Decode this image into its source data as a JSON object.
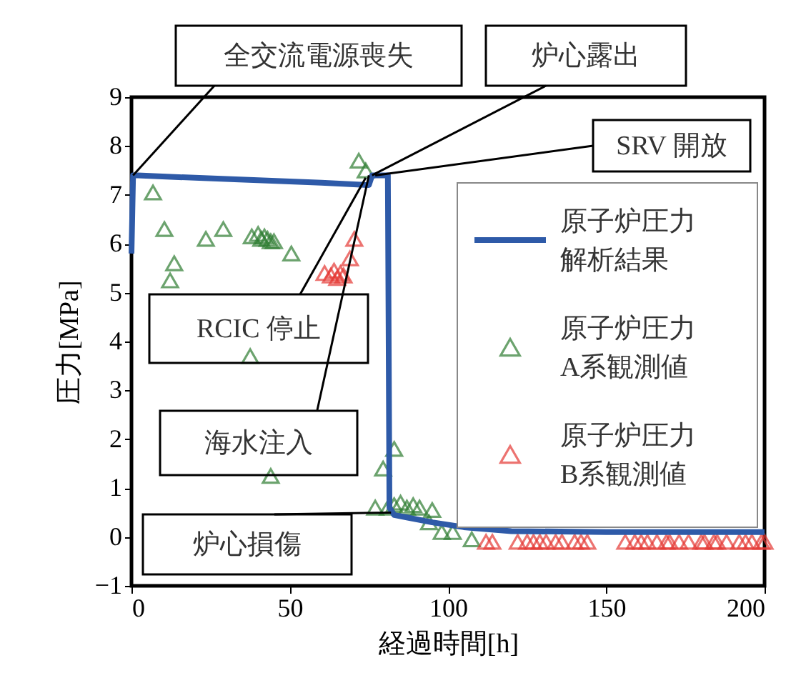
{
  "chart_data": {
    "type": "line",
    "xlabel": "経過時間[h]",
    "ylabel": "圧力[MPa]",
    "xlim": [
      0,
      200
    ],
    "xticks": [
      0,
      50,
      100,
      150,
      200
    ],
    "ylim": [
      -1,
      9
    ],
    "yticks": [
      -1,
      0,
      1,
      2,
      3,
      4,
      5,
      6,
      7,
      8,
      9
    ],
    "grid": false,
    "legend": "right",
    "series": [
      {
        "name": "原子炉圧力解析結果",
        "color": "#2e5aa8",
        "line_style": "solid",
        "x": [
          0,
          0.5,
          2,
          20,
          40,
          60,
          75,
          76,
          81,
          81.5,
          83,
          87,
          95,
          105,
          120,
          150,
          200
        ],
        "values": [
          5.8,
          7.4,
          7.4,
          7.35,
          7.3,
          7.25,
          7.2,
          7.4,
          7.4,
          0.6,
          0.45,
          0.4,
          0.3,
          0.2,
          0.12,
          0.1,
          0.1
        ]
      },
      {
        "name": "原子炉圧力A系観測値",
        "type": "scatter",
        "color": "#2e7d32",
        "marker": "triangle",
        "x": [
          6.8,
          10.4,
          13.5,
          12.2,
          23.5,
          29,
          38,
          40,
          41,
          42,
          43,
          44,
          45,
          50.5,
          37.5,
          44,
          71.8,
          74,
          83,
          79.5,
          77,
          81,
          83,
          85,
          87,
          89,
          91,
          95,
          94,
          98,
          101.5,
          107.5
        ],
        "values": [
          7.05,
          6.3,
          5.6,
          5.25,
          6.1,
          6.3,
          6.15,
          6.2,
          6.1,
          6.15,
          6.1,
          6.05,
          6.05,
          5.8,
          3.7,
          1.25,
          7.7,
          7.5,
          1.8,
          1.4,
          0.6,
          0.6,
          0.65,
          0.7,
          0.6,
          0.65,
          0.6,
          0.55,
          0.3,
          0.1,
          0.1,
          -0.05
        ]
      },
      {
        "name": "原子炉圧力B系観測値",
        "type": "scatter",
        "color": "#e53935",
        "marker": "triangle",
        "x": [
          61,
          63,
          64,
          65,
          66,
          67,
          69,
          70.4,
          112,
          114,
          122,
          125,
          127,
          129,
          131,
          134,
          136,
          140,
          142,
          144,
          156,
          159,
          161,
          163,
          166,
          169,
          170,
          173,
          176,
          180,
          181,
          184,
          185,
          188,
          192,
          194,
          196,
          199,
          200
        ],
        "values": [
          5.4,
          5.35,
          5.45,
          5.3,
          5.4,
          5.35,
          5.7,
          6.1,
          -0.1,
          -0.1,
          -0.1,
          -0.1,
          -0.1,
          -0.1,
          -0.1,
          -0.1,
          -0.1,
          -0.1,
          -0.1,
          -0.1,
          -0.1,
          -0.1,
          -0.1,
          -0.1,
          -0.1,
          -0.1,
          -0.1,
          -0.1,
          -0.1,
          -0.1,
          -0.1,
          -0.1,
          -0.1,
          -0.1,
          -0.1,
          -0.1,
          -0.1,
          -0.1,
          -0.1
        ]
      }
    ],
    "annotations": [
      {
        "text": "全交流電源喪失",
        "x": 0.5,
        "y": 7.4
      },
      {
        "text": "炉心露出",
        "x": 76,
        "y": 7.4
      },
      {
        "text": "SRV 開放",
        "x": 77,
        "y": 7.4
      },
      {
        "text": "RCIC 停止",
        "x": 74,
        "y": 7.35
      },
      {
        "text": "海水注入",
        "x": 75,
        "y": 7.4
      },
      {
        "text": "炉心損傷",
        "x": 82,
        "y": 0.5
      }
    ]
  }
}
